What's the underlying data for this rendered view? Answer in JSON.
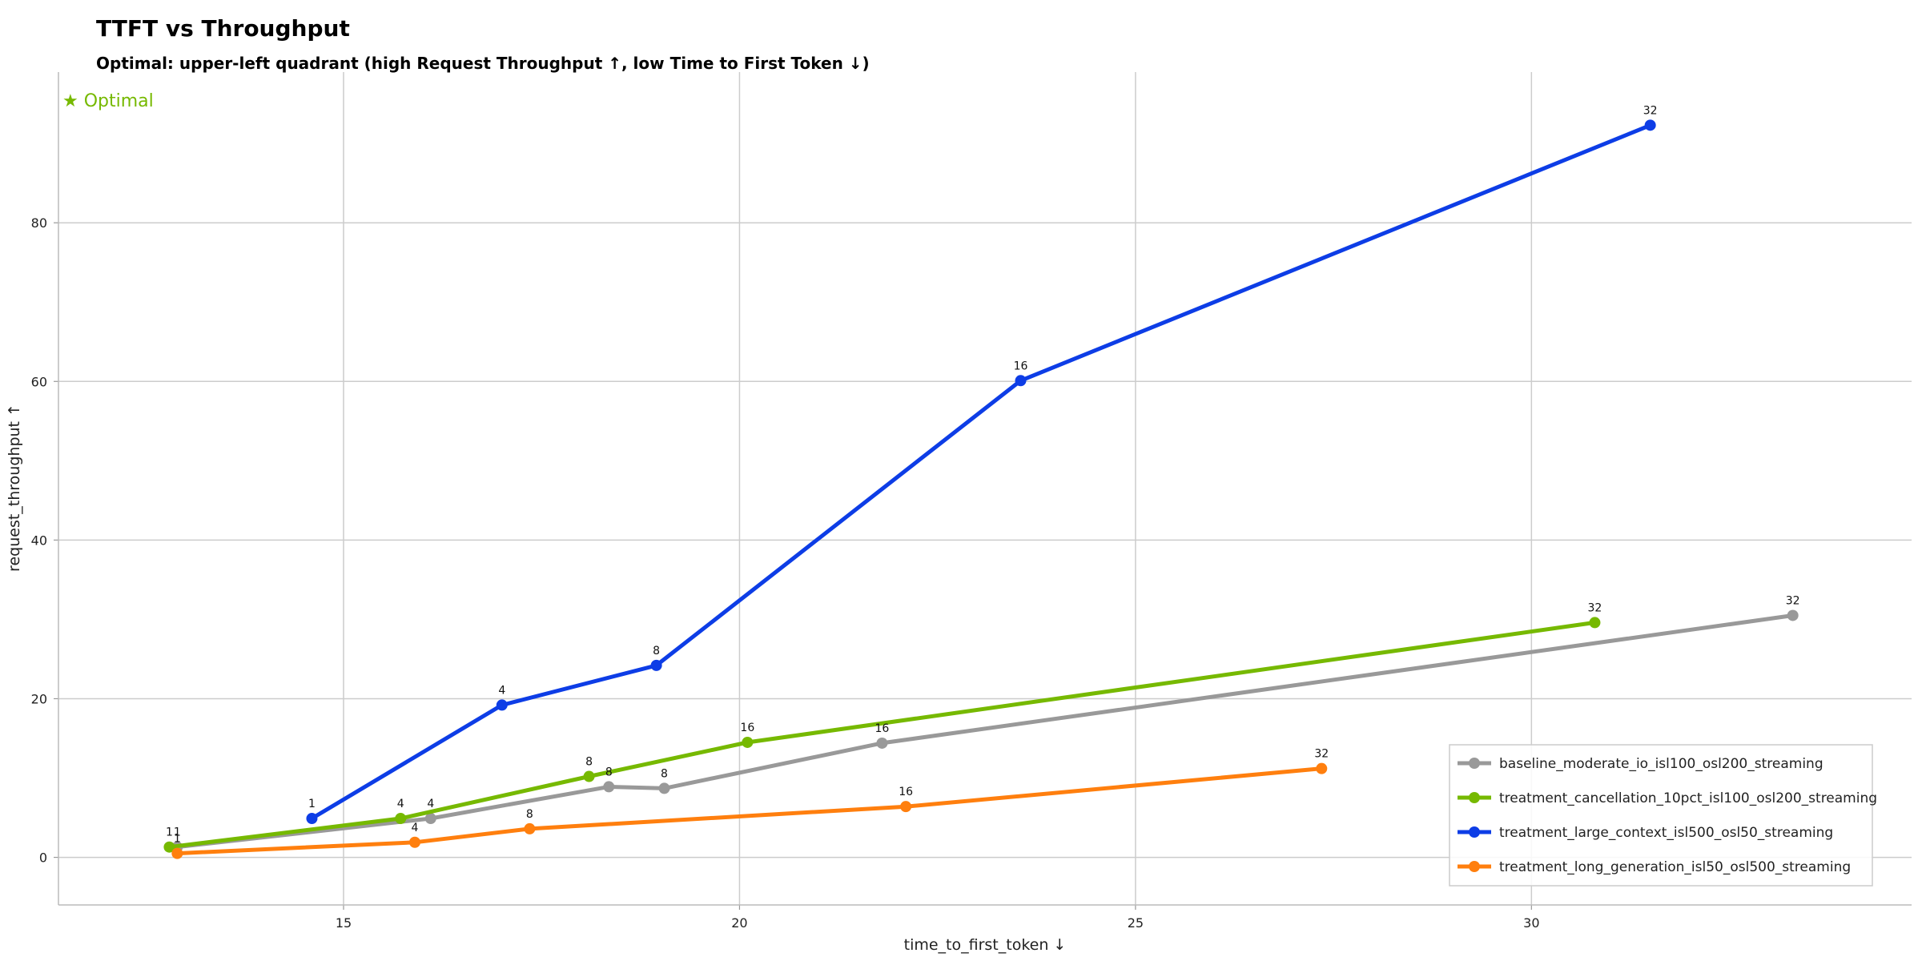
{
  "chart_data": {
    "type": "line",
    "title": "TTFT vs Throughput",
    "subtitle": "Optimal: upper-left quadrant (high Request Throughput ↑, low Time to First Token ↓)",
    "xlabel": "time_to_first_token ↓",
    "ylabel": "request_throughput ↑",
    "xlim": [
      11.4,
      34.8
    ],
    "ylim": [
      -6,
      99
    ],
    "xticks": [
      15,
      20,
      25,
      30
    ],
    "yticks": [
      0,
      20,
      40,
      60,
      80
    ],
    "grid": true,
    "legend_position": "lower-right",
    "annotation": {
      "text": "★ Optimal",
      "color": "#76b900",
      "position": "top-left"
    },
    "series": [
      {
        "name": "baseline_moderate_io_isl100_osl200_streaming",
        "color": "#999999",
        "points": [
          {
            "x": 12.9,
            "y": 1.3,
            "label": "1"
          },
          {
            "x": 16.1,
            "y": 4.9,
            "label": "4"
          },
          {
            "x": 18.35,
            "y": 8.9,
            "label": "8"
          },
          {
            "x": 19.05,
            "y": 8.7,
            "label": "8"
          },
          {
            "x": 21.8,
            "y": 14.4,
            "label": "16"
          },
          {
            "x": 33.3,
            "y": 30.5,
            "label": "32"
          }
        ]
      },
      {
        "name": "treatment_cancellation_10pct_isl100_osl200_streaming",
        "color": "#76b900",
        "points": [
          {
            "x": 12.8,
            "y": 1.3,
            "label": "1"
          },
          {
            "x": 15.72,
            "y": 4.9,
            "label": "4"
          },
          {
            "x": 18.1,
            "y": 10.2,
            "label": "8"
          },
          {
            "x": 20.1,
            "y": 14.5,
            "label": "16"
          },
          {
            "x": 30.8,
            "y": 29.6,
            "label": "32"
          }
        ]
      },
      {
        "name": "treatment_large_context_isl500_osl50_streaming",
        "color": "#0d3de6",
        "points": [
          {
            "x": 14.6,
            "y": 4.9,
            "label": "1"
          },
          {
            "x": 17.0,
            "y": 19.2,
            "label": "4"
          },
          {
            "x": 18.95,
            "y": 24.2,
            "label": "8"
          },
          {
            "x": 23.55,
            "y": 60.1,
            "label": "16"
          },
          {
            "x": 31.5,
            "y": 92.3,
            "label": "32"
          }
        ]
      },
      {
        "name": "treatment_long_generation_isl50_osl500_streaming",
        "color": "#ff7f0e",
        "points": [
          {
            "x": 12.9,
            "y": 0.5,
            "label": "1"
          },
          {
            "x": 15.9,
            "y": 1.9,
            "label": "4"
          },
          {
            "x": 17.35,
            "y": 3.6,
            "label": "8"
          },
          {
            "x": 22.1,
            "y": 6.4,
            "label": "16"
          },
          {
            "x": 27.35,
            "y": 11.2,
            "label": "32"
          }
        ]
      }
    ]
  }
}
